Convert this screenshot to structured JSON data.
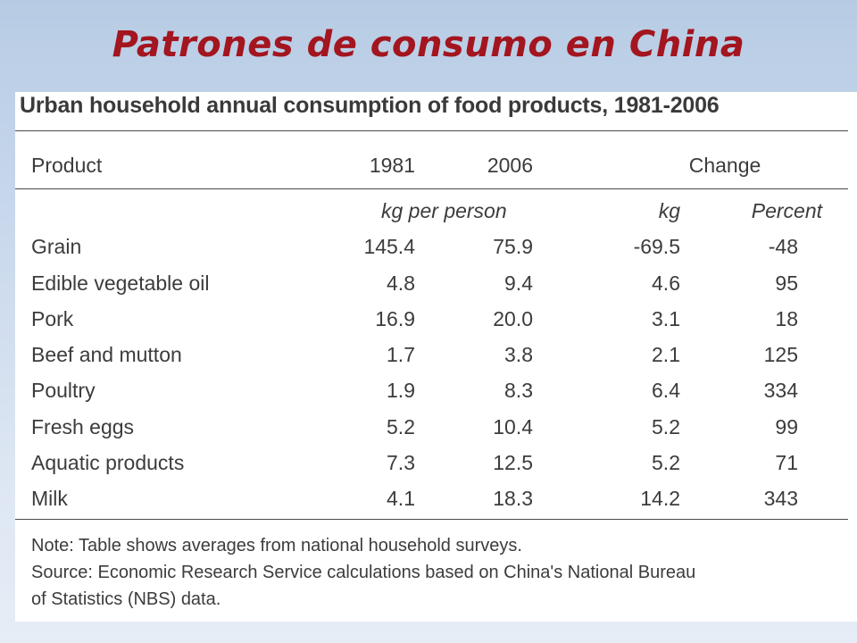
{
  "slide": {
    "title": "Patrones de consumo en China"
  },
  "table": {
    "title": "Urban household annual consumption of food products, 1981-2006",
    "headers": {
      "product": "Product",
      "year_1981": "1981",
      "year_2006": "2006",
      "change": "Change"
    },
    "subheaders": {
      "kg_per_person": "kg per person",
      "kg": "kg",
      "percent": "Percent"
    },
    "rows": [
      {
        "product": "Grain",
        "v1981": "145.4",
        "v2006": "75.9",
        "kg": "-69.5",
        "pct": "-48"
      },
      {
        "product": "Edible vegetable oil",
        "v1981": "4.8",
        "v2006": "9.4",
        "kg": "4.6",
        "pct": "95"
      },
      {
        "product": "Pork",
        "v1981": "16.9",
        "v2006": "20.0",
        "kg": "3.1",
        "pct": "18"
      },
      {
        "product": "Beef and mutton",
        "v1981": "1.7",
        "v2006": "3.8",
        "kg": "2.1",
        "pct": "125"
      },
      {
        "product": "Poultry",
        "v1981": "1.9",
        "v2006": "8.3",
        "kg": "6.4",
        "pct": "334"
      },
      {
        "product": "Fresh eggs",
        "v1981": "5.2",
        "v2006": "10.4",
        "kg": "5.2",
        "pct": "99"
      },
      {
        "product": "Aquatic products",
        "v1981": "7.3",
        "v2006": "12.5",
        "kg": "5.2",
        "pct": "71"
      },
      {
        "product": "Milk",
        "v1981": "4.1",
        "v2006": "18.3",
        "kg": "14.2",
        "pct": "343"
      }
    ],
    "notes": {
      "note": "Note: Table shows averages from national household surveys.",
      "source_line1": "Source: Economic Research Service calculations based on China's National Bureau",
      "source_line2": "of Statistics (NBS) data."
    }
  },
  "colors": {
    "title": "#a3151f",
    "text": "#3c3c3c",
    "background_top": "#b7cce4",
    "background_bottom": "#e6edf6"
  }
}
